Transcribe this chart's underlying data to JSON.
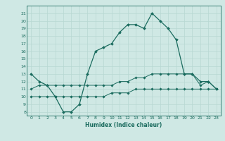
{
  "xlabel": "Humidex (Indice chaleur)",
  "background_color": "#cfe8e4",
  "line_color": "#1a6b5e",
  "grid_color": "#b8d8d2",
  "x_values": [
    0,
    1,
    2,
    3,
    4,
    5,
    6,
    7,
    8,
    9,
    10,
    11,
    12,
    13,
    14,
    15,
    16,
    17,
    18,
    19,
    20,
    21,
    22,
    23
  ],
  "series1": [
    13,
    12,
    11.5,
    10,
    8,
    8,
    9,
    13,
    16,
    16.5,
    17,
    18.5,
    19.5,
    19.5,
    19,
    21,
    20,
    19,
    17.5,
    13,
    13,
    12,
    12,
    11
  ],
  "series2": [
    11,
    11.5,
    11.5,
    11.5,
    11.5,
    11.5,
    11.5,
    11.5,
    11.5,
    11.5,
    11.5,
    12,
    12,
    12.5,
    12.5,
    13,
    13,
    13,
    13,
    13,
    13,
    11.5,
    12,
    11
  ],
  "series3": [
    10,
    10,
    10,
    10,
    10,
    10,
    10,
    10,
    10,
    10,
    10.5,
    10.5,
    10.5,
    11,
    11,
    11,
    11,
    11,
    11,
    11,
    11,
    11,
    11,
    11
  ],
  "ylim": [
    7.5,
    22
  ],
  "xlim": [
    -0.5,
    23.5
  ],
  "yticks": [
    8,
    9,
    10,
    11,
    12,
    13,
    14,
    15,
    16,
    17,
    18,
    19,
    20,
    21
  ],
  "xticks": [
    0,
    1,
    2,
    3,
    4,
    5,
    6,
    7,
    8,
    9,
    10,
    11,
    12,
    13,
    14,
    15,
    16,
    17,
    18,
    19,
    20,
    21,
    22,
    23
  ]
}
